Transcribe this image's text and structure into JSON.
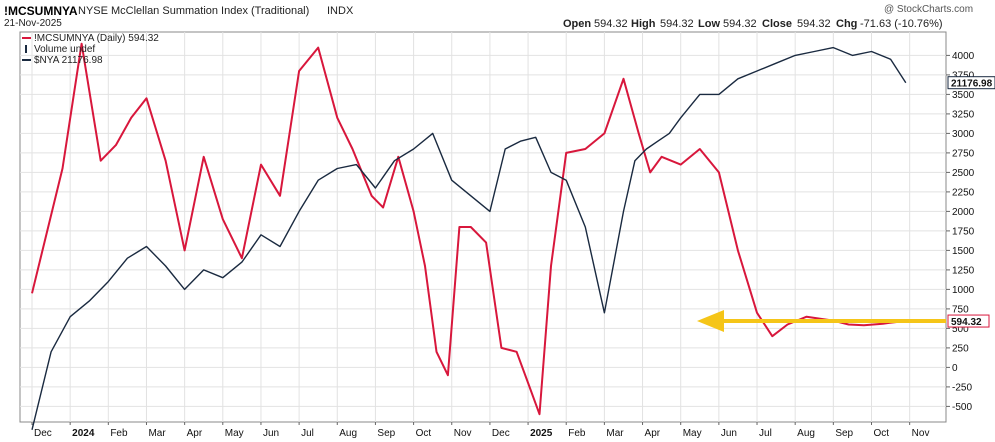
{
  "header": {
    "symbol": "!MCSUMNYA",
    "description": "NYSE McClellan Summation Index (Traditional)",
    "exchange": "INDX",
    "date": "21-Nov-2025",
    "copyright": "@ StockCharts.com",
    "open_label": "Open",
    "open_value": "594.32",
    "high_label": "High",
    "high_value": "594.32",
    "low_label": "Low",
    "low_value": "594.32",
    "close_label": "Close",
    "close_value": "594.32",
    "chg_label": "Chg",
    "chg_value": "-71.63 (-10.76%)"
  },
  "legend": [
    {
      "text": "!MCSUMNYA (Daily) 594.32",
      "color": "#d8173c",
      "kind": "line"
    },
    {
      "text": "Volume undef",
      "color": "#1a2a40",
      "kind": "bar"
    },
    {
      "text": "$NYA 21176.98",
      "color": "#1a2a40",
      "kind": "line"
    }
  ],
  "colors": {
    "summation": "#d8173c",
    "nya": "#1a2a40",
    "arrow": "#f5c518",
    "grid": "#e2e2e2"
  },
  "chart_data": {
    "type": "line",
    "x_axis": {
      "labels": [
        "Dec",
        "2024",
        "Feb",
        "Mar",
        "Apr",
        "May",
        "Jun",
        "Jul",
        "Aug",
        "Sep",
        "Oct",
        "Nov",
        "Dec",
        "2025",
        "Feb",
        "Mar",
        "Apr",
        "May",
        "Jun",
        "Jul",
        "Aug",
        "Sep",
        "Oct",
        "Nov"
      ],
      "bold_labels": [
        "2024",
        "2025"
      ]
    },
    "y_axis": {
      "ticks": [
        -500,
        -250,
        0,
        250,
        500,
        750,
        1000,
        1250,
        1500,
        1750,
        2000,
        2250,
        2500,
        2750,
        3000,
        3250,
        3500,
        3750,
        4000
      ],
      "tick_labels": [
        "-500",
        "-250",
        "0",
        "250",
        "500",
        "750",
        "1000",
        "1250",
        "1500",
        "1750",
        "2000",
        "2250",
        "2500",
        "2750",
        "3000",
        "3250",
        "3500",
        "3750",
        "4000"
      ],
      "range": [
        -700,
        4300
      ],
      "side": "right"
    },
    "grid": true,
    "value_labels": {
      "summation": "594.32",
      "nya": "21176.98"
    },
    "series": [
      {
        "name": "!MCSUMNYA (Daily) 594.32",
        "color": "#d8173c",
        "x": [
          0,
          0.8,
          1.3,
          1.8,
          2.2,
          2.6,
          3.0,
          3.5,
          4.0,
          4.5,
          5.0,
          5.5,
          6.0,
          6.5,
          7.0,
          7.5,
          8.0,
          8.4,
          8.9,
          9.2,
          9.6,
          10.0,
          10.3,
          10.6,
          10.9,
          11.2,
          11.5,
          11.9,
          12.3,
          12.7,
          13.0,
          13.3,
          13.6,
          14.0,
          14.5,
          15.0,
          15.5,
          15.9,
          16.2,
          16.5,
          17.0,
          17.5,
          18.0,
          18.5,
          19.0,
          19.4,
          19.8,
          20.3,
          20.7,
          21.0,
          21.4,
          21.8,
          22.3,
          22.6,
          22.9
        ],
        "values": [
          950,
          2550,
          4150,
          2650,
          2850,
          3200,
          3450,
          2650,
          1500,
          2700,
          1900,
          1400,
          2600,
          2200,
          3800,
          4100,
          3200,
          2800,
          2200,
          2050,
          2700,
          2000,
          1300,
          200,
          -100,
          1800,
          1800,
          1600,
          250,
          200,
          -200,
          -600,
          1300,
          2750,
          2800,
          3000,
          3700,
          3000,
          2500,
          2700,
          2600,
          2800,
          2500,
          1500,
          700,
          400,
          550,
          650,
          620,
          600,
          550,
          540,
          560,
          580,
          594.32
        ]
      },
      {
        "name": "$NYA 21176.98",
        "color": "#1a2a40",
        "x": [
          0,
          0.5,
          1.0,
          1.5,
          2.0,
          2.5,
          3.0,
          3.5,
          4.0,
          4.5,
          5.0,
          5.5,
          6.0,
          6.5,
          7.0,
          7.5,
          8.0,
          8.5,
          9.0,
          9.5,
          10.0,
          10.5,
          11.0,
          11.5,
          12.0,
          12.4,
          12.8,
          13.2,
          13.6,
          14.0,
          14.5,
          15.0,
          15.5,
          15.8,
          16.1,
          16.4,
          16.7,
          17.0,
          17.5,
          18.0,
          18.5,
          19.0,
          19.5,
          20.0,
          20.5,
          21.0,
          21.5,
          22.0,
          22.5,
          22.9
        ],
        "values": [
          -800,
          200,
          650,
          850,
          1100,
          1400,
          1550,
          1300,
          1000,
          1250,
          1150,
          1350,
          1700,
          1550,
          2000,
          2400,
          2550,
          2600,
          2300,
          2650,
          2800,
          3000,
          2400,
          2200,
          2000,
          2800,
          2900,
          2950,
          2500,
          2400,
          1800,
          700,
          2000,
          2650,
          2800,
          2900,
          3000,
          3200,
          3500,
          3500,
          3700,
          3800,
          3900,
          4000,
          4050,
          4100,
          4000,
          4050,
          3950,
          3650
        ]
      }
    ],
    "annotations": [
      {
        "type": "arrow",
        "direction": "left",
        "color": "#f5c518",
        "y_value": 594.32
      }
    ]
  }
}
